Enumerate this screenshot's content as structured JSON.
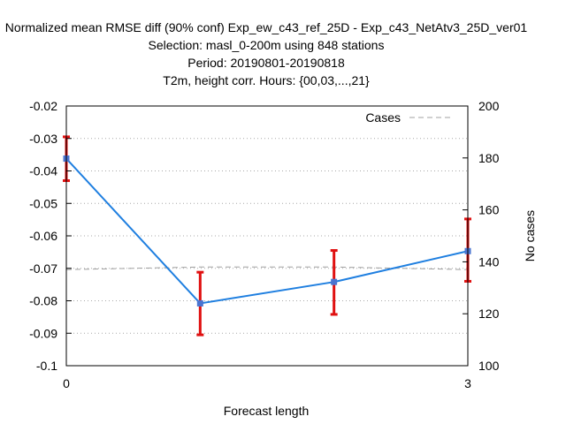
{
  "chart_data": {
    "type": "line",
    "title_lines": [
      "Normalized mean RMSE diff (90% conf) Exp_ew_c43_ref_25D - Exp_c43_NetAtv3_25D_ver01",
      "Selection: masl_0-200m using   848 stations",
      "Period: 20190801-20190818",
      "T2m, height corr.   Hours: {00,03,...,21}"
    ],
    "xlabel": "Forecast length",
    "ylabel": "",
    "y2label": "No cases",
    "xlim": [
      0,
      3
    ],
    "ylim": [
      -0.1,
      -0.02
    ],
    "y2lim": [
      100,
      200
    ],
    "x_ticks": [
      "0",
      "3"
    ],
    "x_tick_values": [
      0,
      3
    ],
    "y_ticks": [
      "-0.02",
      "-0.03",
      "-0.04",
      "-0.05",
      "-0.06",
      "-0.07",
      "-0.08",
      "-0.09",
      "-0.1"
    ],
    "y_tick_values": [
      -0.02,
      -0.03,
      -0.04,
      -0.05,
      -0.06,
      -0.07,
      -0.08,
      -0.09,
      -0.1
    ],
    "y2_ticks": [
      "200",
      "180",
      "160",
      "140",
      "120",
      "100"
    ],
    "y2_tick_values": [
      200,
      180,
      160,
      140,
      120,
      100
    ],
    "grid": "horizontal-dotted",
    "legend": {
      "label": "Cases",
      "placement": "top-right"
    },
    "series": [
      {
        "x": [
          0,
          1,
          2,
          3
        ],
        "y": [
          -0.0362,
          -0.0808,
          -0.0742,
          -0.0647
        ],
        "err_low": [
          -0.043,
          -0.0905,
          -0.0842,
          -0.074
        ],
        "err_high": [
          -0.0295,
          -0.0712,
          -0.0645,
          -0.0548
        ],
        "color": "#1f7fe0",
        "errbar_color": "#e01010"
      },
      {
        "name": "Cases",
        "axis": "y2",
        "x": [
          0,
          1,
          2,
          3
        ],
        "y": [
          137,
          138,
          138,
          137
        ],
        "color": "#a0a0a0",
        "style": "dashed"
      }
    ]
  }
}
